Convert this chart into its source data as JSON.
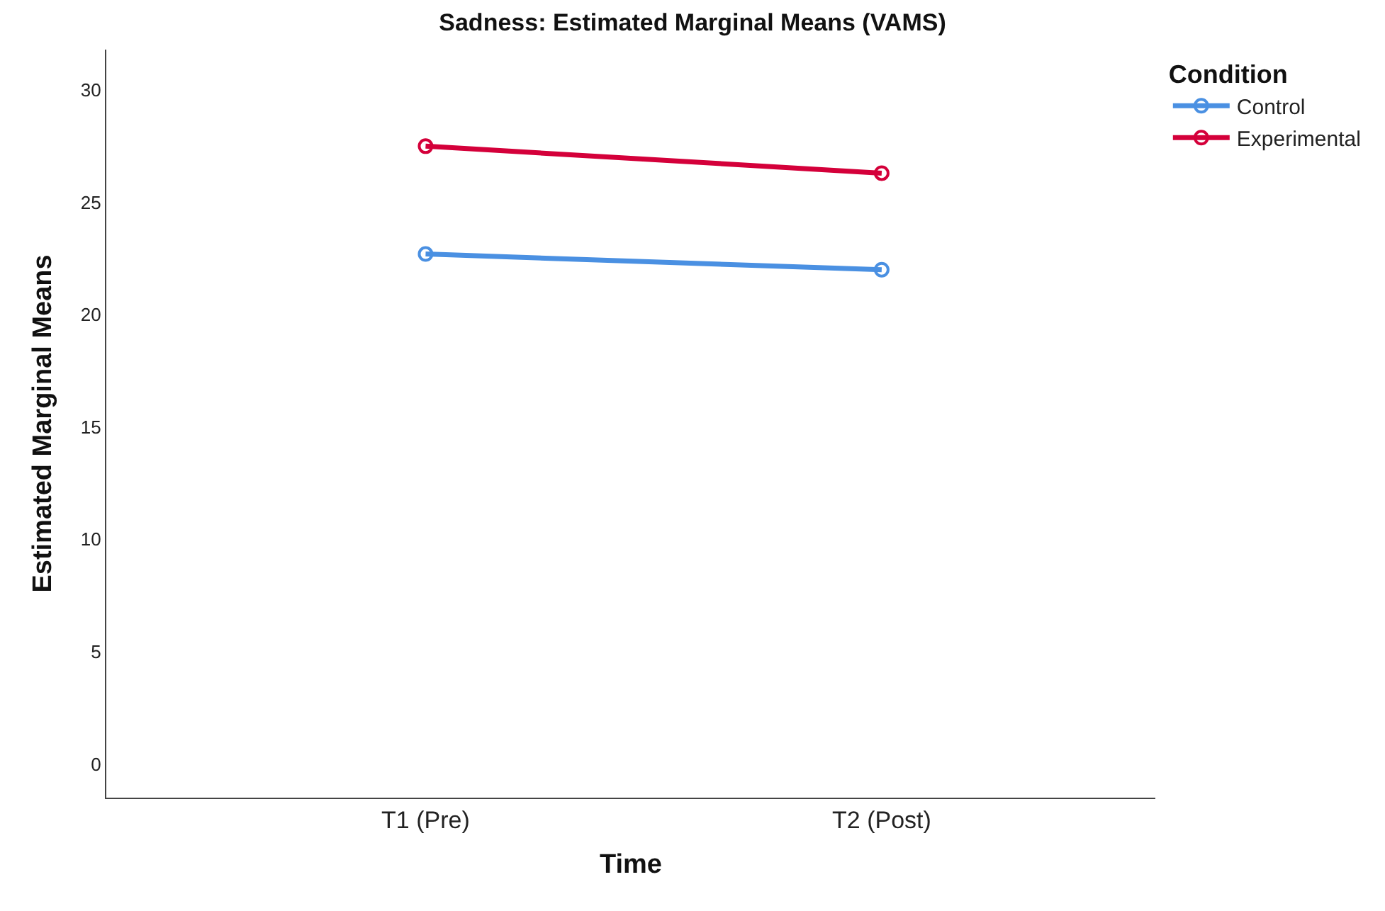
{
  "chart_data": {
    "type": "line",
    "title": "Sadness: Estimated Marginal Means (VAMS)",
    "xlabel": "Time",
    "ylabel": "Estimated Marginal Means",
    "legend_title": "Condition",
    "categories": [
      "T1 (Pre)",
      "T2 (Post)"
    ],
    "series": [
      {
        "name": "Control",
        "color": "#4a90e2",
        "values": [
          22.7,
          22.0
        ]
      },
      {
        "name": "Experimental",
        "color": "#d4003a",
        "values": [
          27.5,
          26.3
        ]
      }
    ],
    "ylim": [
      -1.5,
      31.8
    ],
    "yticks": [
      0,
      5,
      10,
      15,
      20,
      25,
      30
    ],
    "legend": "top right",
    "marker": "circle",
    "line_style": "solid"
  }
}
